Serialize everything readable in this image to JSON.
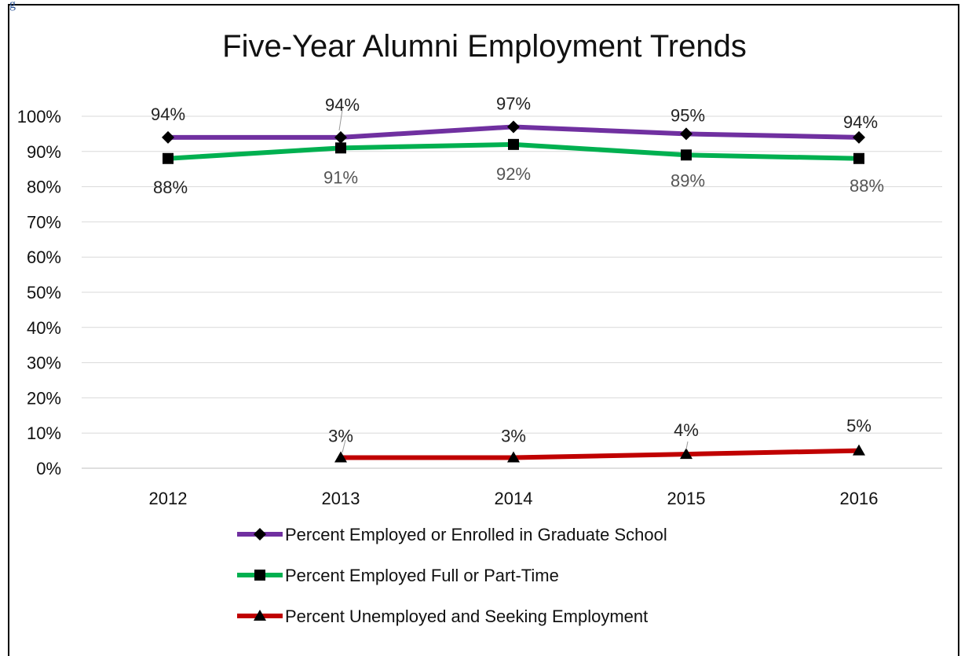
{
  "corner_text": "g",
  "chart_data": {
    "type": "line",
    "title": "Five-Year Alumni Employment Trends",
    "xlabel": "",
    "ylabel": "",
    "categories": [
      "2012",
      "2013",
      "2014",
      "2015",
      "2016"
    ],
    "ylim": [
      0,
      100
    ],
    "y_ticks": [
      "0%",
      "10%",
      "20%",
      "30%",
      "40%",
      "50%",
      "60%",
      "70%",
      "80%",
      "90%",
      "100%"
    ],
    "grid": "horizontal",
    "legend_position": "bottom",
    "series": [
      {
        "name": "Percent Employed or Enrolled in Graduate School",
        "values": [
          94,
          94,
          97,
          95,
          94
        ],
        "labels": [
          "94%",
          "94%",
          "97%",
          "95%",
          "94%"
        ],
        "color": "#7030a0",
        "marker": "diamond"
      },
      {
        "name": "Percent Employed Full or Part-Time",
        "values": [
          88,
          91,
          92,
          89,
          88
        ],
        "labels": [
          "88%",
          "91%",
          "92%",
          "89%",
          "88%"
        ],
        "color": "#00b050",
        "marker": "square"
      },
      {
        "name": "Percent Unemployed and Seeking Employment",
        "values": [
          null,
          3,
          3,
          4,
          5
        ],
        "labels": [
          null,
          "3%",
          "3%",
          "4%",
          "5%"
        ],
        "color": "#c00000",
        "marker": "triangle"
      }
    ]
  }
}
